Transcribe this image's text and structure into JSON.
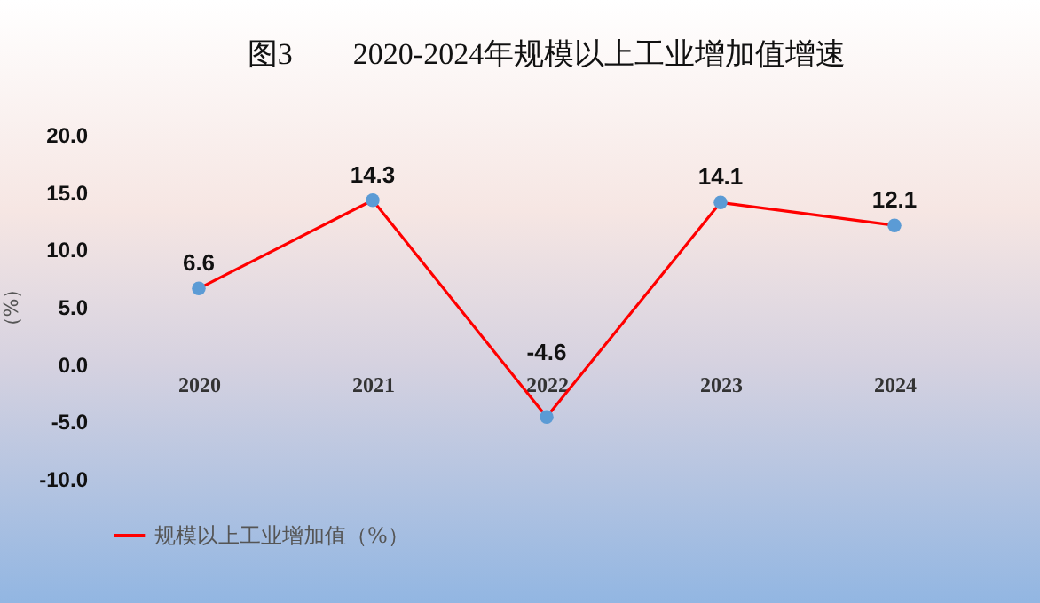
{
  "chart_data": {
    "type": "line",
    "title": "图3　　2020-2024年规模以上工业增加值增速",
    "ylabel": "（%）",
    "categories": [
      "2020",
      "2021",
      "2022",
      "2023",
      "2024"
    ],
    "series": [
      {
        "name": "规模以上工业增加值（%）",
        "color": "#ff0000",
        "colors": [
          "#5b9bd5",
          "#5b9bd5",
          "#5b9bd5",
          "#5b9bd5",
          "#5b9bd5"
        ],
        "values": [
          6.6,
          14.3,
          -4.6,
          14.1,
          12.1
        ]
      }
    ],
    "ylim": [
      -10,
      20
    ],
    "yticks": [
      {
        "value": -10,
        "label": "-10.0"
      },
      {
        "value": -5,
        "label": "-5.0"
      },
      {
        "value": 0,
        "label": "0.0"
      },
      {
        "value": 5,
        "label": "5.0"
      },
      {
        "value": 10,
        "label": "10.0"
      },
      {
        "value": 15,
        "label": "15.0"
      },
      {
        "value": 20,
        "label": "20.0"
      }
    ],
    "marker": "circle",
    "data_labels": true,
    "grid": false,
    "legend": "bottom"
  }
}
